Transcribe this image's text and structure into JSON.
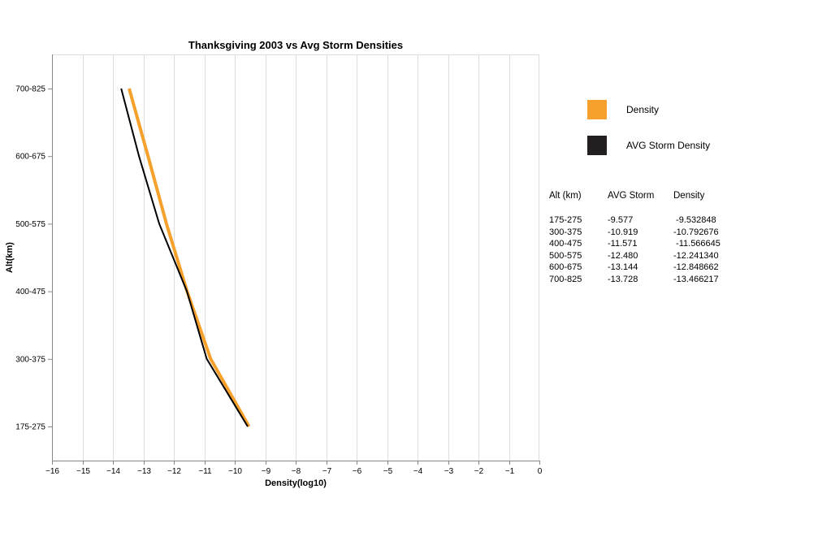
{
  "chart_data": {
    "type": "line",
    "title": "Thanksgiving 2003 vs Avg Storm Densities",
    "xlabel": "Density(log10)",
    "ylabel": "Alt(km)",
    "xlim": [
      -16,
      0
    ],
    "x_ticks": [
      "−16",
      "−15",
      "−14",
      "−13",
      "−12",
      "−11",
      "−10",
      "−9",
      "−8",
      "−7",
      "−6",
      "−5",
      "−4",
      "−3",
      "−2",
      "−1",
      "0"
    ],
    "categories": [
      "175-275",
      "300-375",
      "400-475",
      "500-575",
      "600-675",
      "700-825"
    ],
    "grid": "vertical",
    "series": [
      {
        "name": "Density",
        "color": "#f5a12b",
        "values": [
          -9.532848,
          -10.792676,
          -11.566645,
          -12.24134,
          -12.848662,
          -13.466217
        ]
      },
      {
        "name": "AVG Storm Density",
        "color": "#000000",
        "values": [
          -9.577,
          -10.919,
          -11.571,
          -12.48,
          -13.144,
          -13.728
        ]
      }
    ]
  },
  "legend": {
    "items": [
      {
        "label": "Density",
        "color": "#f5a12b"
      },
      {
        "label": "AVG Storm Density",
        "color": "#231f20"
      }
    ]
  },
  "table": {
    "headers": [
      "Alt (km)",
      "AVG Storm",
      "Density"
    ],
    "rows": [
      [
        "175-275",
        "-9.577",
        " -9.532848"
      ],
      [
        "300-375",
        "-10.919",
        "-10.792676"
      ],
      [
        "400-475",
        "-11.571",
        " -11.566645"
      ],
      [
        "500-575",
        "-12.480",
        "-12.241340"
      ],
      [
        "600-675",
        "-13.144",
        "-12.848662"
      ],
      [
        "700-825",
        "-13.728",
        "-13.466217"
      ]
    ]
  }
}
